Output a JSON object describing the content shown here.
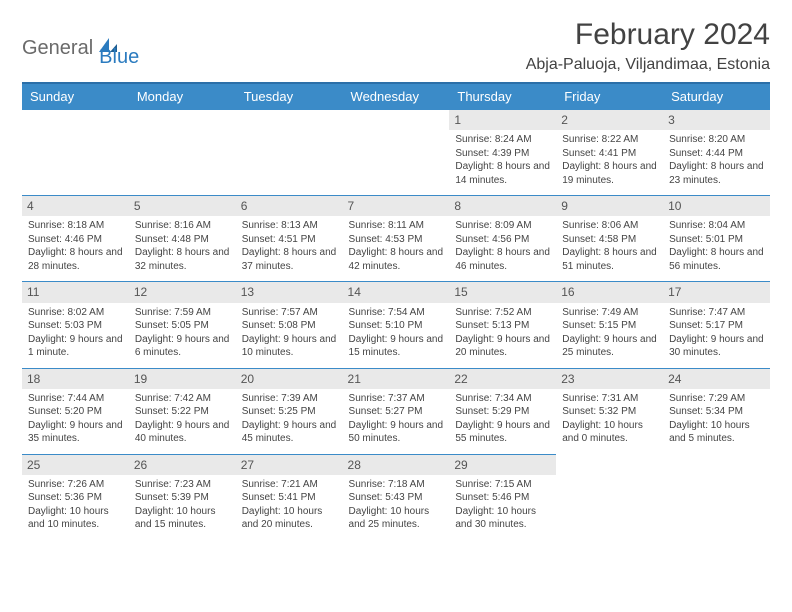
{
  "logo": {
    "text1": "General",
    "text2": "Blue"
  },
  "title": "February 2024",
  "location": "Abja-Paluoja, Viljandimaa, Estonia",
  "colors": {
    "header_bg": "#3b8bc8",
    "header_border": "#2b6fa8",
    "daynum_bg": "#e9e9e9",
    "text": "#444444",
    "title_text": "#424242",
    "logo_gray": "#6a6a6a",
    "logo_blue": "#2b7bbf"
  },
  "daysOfWeek": [
    "Sunday",
    "Monday",
    "Tuesday",
    "Wednesday",
    "Thursday",
    "Friday",
    "Saturday"
  ],
  "weeks": [
    [
      null,
      null,
      null,
      null,
      {
        "n": "1",
        "sr": "8:24 AM",
        "ss": "4:39 PM",
        "dl": "8 hours and 14 minutes."
      },
      {
        "n": "2",
        "sr": "8:22 AM",
        "ss": "4:41 PM",
        "dl": "8 hours and 19 minutes."
      },
      {
        "n": "3",
        "sr": "8:20 AM",
        "ss": "4:44 PM",
        "dl": "8 hours and 23 minutes."
      }
    ],
    [
      {
        "n": "4",
        "sr": "8:18 AM",
        "ss": "4:46 PM",
        "dl": "8 hours and 28 minutes."
      },
      {
        "n": "5",
        "sr": "8:16 AM",
        "ss": "4:48 PM",
        "dl": "8 hours and 32 minutes."
      },
      {
        "n": "6",
        "sr": "8:13 AM",
        "ss": "4:51 PM",
        "dl": "8 hours and 37 minutes."
      },
      {
        "n": "7",
        "sr": "8:11 AM",
        "ss": "4:53 PM",
        "dl": "8 hours and 42 minutes."
      },
      {
        "n": "8",
        "sr": "8:09 AM",
        "ss": "4:56 PM",
        "dl": "8 hours and 46 minutes."
      },
      {
        "n": "9",
        "sr": "8:06 AM",
        "ss": "4:58 PM",
        "dl": "8 hours and 51 minutes."
      },
      {
        "n": "10",
        "sr": "8:04 AM",
        "ss": "5:01 PM",
        "dl": "8 hours and 56 minutes."
      }
    ],
    [
      {
        "n": "11",
        "sr": "8:02 AM",
        "ss": "5:03 PM",
        "dl": "9 hours and 1 minute."
      },
      {
        "n": "12",
        "sr": "7:59 AM",
        "ss": "5:05 PM",
        "dl": "9 hours and 6 minutes."
      },
      {
        "n": "13",
        "sr": "7:57 AM",
        "ss": "5:08 PM",
        "dl": "9 hours and 10 minutes."
      },
      {
        "n": "14",
        "sr": "7:54 AM",
        "ss": "5:10 PM",
        "dl": "9 hours and 15 minutes."
      },
      {
        "n": "15",
        "sr": "7:52 AM",
        "ss": "5:13 PM",
        "dl": "9 hours and 20 minutes."
      },
      {
        "n": "16",
        "sr": "7:49 AM",
        "ss": "5:15 PM",
        "dl": "9 hours and 25 minutes."
      },
      {
        "n": "17",
        "sr": "7:47 AM",
        "ss": "5:17 PM",
        "dl": "9 hours and 30 minutes."
      }
    ],
    [
      {
        "n": "18",
        "sr": "7:44 AM",
        "ss": "5:20 PM",
        "dl": "9 hours and 35 minutes."
      },
      {
        "n": "19",
        "sr": "7:42 AM",
        "ss": "5:22 PM",
        "dl": "9 hours and 40 minutes."
      },
      {
        "n": "20",
        "sr": "7:39 AM",
        "ss": "5:25 PM",
        "dl": "9 hours and 45 minutes."
      },
      {
        "n": "21",
        "sr": "7:37 AM",
        "ss": "5:27 PM",
        "dl": "9 hours and 50 minutes."
      },
      {
        "n": "22",
        "sr": "7:34 AM",
        "ss": "5:29 PM",
        "dl": "9 hours and 55 minutes."
      },
      {
        "n": "23",
        "sr": "7:31 AM",
        "ss": "5:32 PM",
        "dl": "10 hours and 0 minutes."
      },
      {
        "n": "24",
        "sr": "7:29 AM",
        "ss": "5:34 PM",
        "dl": "10 hours and 5 minutes."
      }
    ],
    [
      {
        "n": "25",
        "sr": "7:26 AM",
        "ss": "5:36 PM",
        "dl": "10 hours and 10 minutes."
      },
      {
        "n": "26",
        "sr": "7:23 AM",
        "ss": "5:39 PM",
        "dl": "10 hours and 15 minutes."
      },
      {
        "n": "27",
        "sr": "7:21 AM",
        "ss": "5:41 PM",
        "dl": "10 hours and 20 minutes."
      },
      {
        "n": "28",
        "sr": "7:18 AM",
        "ss": "5:43 PM",
        "dl": "10 hours and 25 minutes."
      },
      {
        "n": "29",
        "sr": "7:15 AM",
        "ss": "5:46 PM",
        "dl": "10 hours and 30 minutes."
      },
      null,
      null
    ]
  ],
  "labels": {
    "sunrise": "Sunrise:",
    "sunset": "Sunset:",
    "daylight": "Daylight:"
  }
}
